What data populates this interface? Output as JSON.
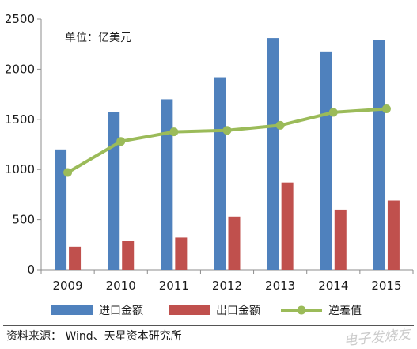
{
  "chart_data": {
    "type": "bar",
    "categories": [
      "2009",
      "2010",
      "2011",
      "2012",
      "2013",
      "2014",
      "2015"
    ],
    "series": [
      {
        "name": "进口金额",
        "kind": "bar",
        "color": "#4f81bd",
        "values": [
          1200,
          1570,
          1700,
          1920,
          2310,
          2170,
          2290
        ]
      },
      {
        "name": "出口金额",
        "kind": "bar",
        "color": "#c0504d",
        "values": [
          230,
          290,
          320,
          530,
          870,
          600,
          690
        ]
      },
      {
        "name": "逆差值",
        "kind": "line",
        "color": "#9bbb59",
        "values": [
          970,
          1280,
          1375,
          1390,
          1440,
          1570,
          1605
        ]
      }
    ],
    "yticks": [
      "0",
      "500",
      "1000",
      "1500",
      "2000",
      "2500"
    ],
    "ylim": [
      0,
      2500
    ],
    "unit_label": "单位：亿美元",
    "legend_position": "bottom",
    "grid": false
  },
  "source": "资料来源： Wind、天星资本研究所",
  "watermark": "电子发烧友"
}
